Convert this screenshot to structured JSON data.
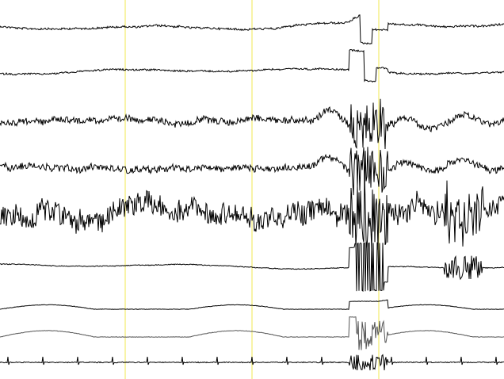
{
  "colors": {
    "background": "#ffffff",
    "trace": "#000000",
    "trace_light": "#555555",
    "marker": "#f5f08a"
  },
  "channel_count": 9,
  "marker_count": 3
}
